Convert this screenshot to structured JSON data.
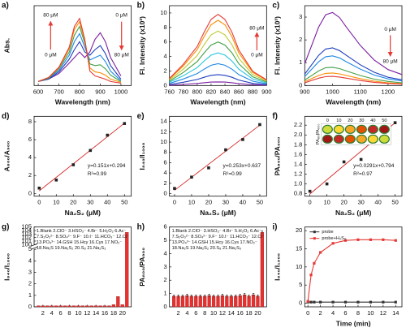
{
  "chart_data": [
    {
      "type": "line",
      "label": "a)",
      "xlabel": "Wavelength (nm)",
      "ylabel": "Abs.",
      "x": [
        600,
        650,
        700,
        750,
        775,
        800,
        825,
        850,
        875,
        900,
        925,
        950,
        1000
      ],
      "series": [
        {
          "color": "#7b1fa2",
          "values": [
            0.05,
            0.08,
            0.15,
            0.28,
            0.35,
            0.42,
            0.35,
            0.42,
            0.58,
            0.66,
            0.55,
            0.35,
            0.12
          ]
        },
        {
          "color": "#1f3fbf",
          "values": [
            0.05,
            0.08,
            0.17,
            0.33,
            0.45,
            0.55,
            0.42,
            0.38,
            0.45,
            0.5,
            0.4,
            0.25,
            0.08
          ]
        },
        {
          "color": "#1e88e5",
          "values": [
            0.05,
            0.09,
            0.19,
            0.38,
            0.55,
            0.65,
            0.48,
            0.32,
            0.35,
            0.38,
            0.3,
            0.18,
            0.06
          ]
        },
        {
          "color": "#43a047",
          "values": [
            0.05,
            0.09,
            0.21,
            0.42,
            0.63,
            0.74,
            0.53,
            0.27,
            0.25,
            0.26,
            0.21,
            0.13,
            0.05
          ]
        },
        {
          "color": "#fb8c00",
          "values": [
            0.05,
            0.1,
            0.22,
            0.46,
            0.7,
            0.8,
            0.56,
            0.22,
            0.17,
            0.16,
            0.13,
            0.08,
            0.04
          ]
        },
        {
          "color": "#e53935",
          "values": [
            0.05,
            0.1,
            0.23,
            0.48,
            0.74,
            0.84,
            0.58,
            0.18,
            0.12,
            0.1,
            0.08,
            0.05,
            0.03
          ]
        }
      ],
      "xlim": [
        580,
        1050
      ],
      "ylim": [
        0,
        1
      ],
      "xticks": [
        600,
        700,
        800,
        900,
        1000
      ],
      "annotations": [
        "80 μM",
        "0 μM",
        "0 μM",
        "80 μM"
      ]
    },
    {
      "type": "line",
      "label": "b)",
      "xlabel": "Wavelength (nm)",
      "ylabel": "Fl. Intensity (x10³)",
      "x": [
        760,
        780,
        800,
        810,
        820,
        830,
        840,
        850,
        860,
        880,
        900
      ],
      "series": [
        {
          "color": "#7b1fa2",
          "values": [
            0.05,
            0.15,
            0.28,
            0.38,
            0.47,
            0.5,
            0.47,
            0.38,
            0.25,
            0.1,
            0.04
          ]
        },
        {
          "color": "#1f3fbf",
          "values": [
            0.15,
            0.45,
            0.83,
            1.13,
            1.4,
            1.5,
            1.4,
            1.13,
            0.75,
            0.3,
            0.12
          ]
        },
        {
          "color": "#1e88e5",
          "values": [
            0.3,
            0.9,
            1.65,
            2.25,
            2.79,
            3,
            2.79,
            2.25,
            1.5,
            0.6,
            0.24
          ]
        },
        {
          "color": "#26c6da",
          "values": [
            0.45,
            1.35,
            2.48,
            3.38,
            4.19,
            4.5,
            4.19,
            3.38,
            2.25,
            0.9,
            0.36
          ]
        },
        {
          "color": "#43a047",
          "values": [
            0.6,
            1.8,
            3.3,
            4.5,
            5.58,
            6,
            5.58,
            4.5,
            3,
            1.2,
            0.48
          ]
        },
        {
          "color": "#c0ca33",
          "values": [
            0.75,
            2.25,
            4.13,
            5.63,
            6.98,
            7.5,
            6.98,
            5.63,
            3.75,
            1.5,
            0.6
          ]
        },
        {
          "color": "#fb8c00",
          "values": [
            0.9,
            2.7,
            4.95,
            6.75,
            8.37,
            9,
            8.37,
            6.75,
            4.5,
            1.8,
            0.72
          ]
        },
        {
          "color": "#e53935",
          "values": [
            0.98,
            2.94,
            5.39,
            7.35,
            9.11,
            9.8,
            9.11,
            7.35,
            4.9,
            1.96,
            0.78
          ]
        }
      ],
      "xlim": [
        760,
        900
      ],
      "ylim": [
        0,
        11
      ],
      "xticks": [
        760,
        780,
        800,
        820,
        840,
        860,
        880,
        900
      ],
      "yticks": [
        0,
        2,
        4,
        6,
        8,
        10
      ],
      "annotations": [
        "80 μM",
        "0 μM"
      ]
    },
    {
      "type": "line",
      "label": "c)",
      "xlabel": "Wavelength (nm)",
      "ylabel": "Fl. Intensity (x10³)",
      "x": [
        900,
        950,
        975,
        1000,
        1025,
        1050,
        1100,
        1150,
        1200,
        1250
      ],
      "series": [
        {
          "color": "#7b1fa2",
          "values": [
            0.96,
            2.56,
            3.1,
            3.2,
            2.98,
            2.56,
            1.76,
            1.12,
            0.7,
            0.48
          ]
        },
        {
          "color": "#1f3fbf",
          "values": [
            0.5,
            1.32,
            1.6,
            1.65,
            1.53,
            1.32,
            0.91,
            0.58,
            0.36,
            0.25
          ]
        },
        {
          "color": "#1e88e5",
          "values": [
            0.39,
            1.04,
            1.26,
            1.3,
            1.21,
            1.04,
            0.72,
            0.46,
            0.29,
            0.2
          ]
        },
        {
          "color": "#43a047",
          "values": [
            0.24,
            0.64,
            0.78,
            0.8,
            0.74,
            0.64,
            0.44,
            0.28,
            0.18,
            0.12
          ]
        },
        {
          "color": "#fb8c00",
          "values": [
            0.17,
            0.44,
            0.53,
            0.55,
            0.51,
            0.44,
            0.3,
            0.19,
            0.12,
            0.08
          ]
        },
        {
          "color": "#e53935",
          "values": [
            0.12,
            0.32,
            0.39,
            0.4,
            0.37,
            0.32,
            0.22,
            0.14,
            0.09,
            0.06
          ]
        }
      ],
      "xlim": [
        900,
        1250
      ],
      "ylim": [
        0,
        3.5
      ],
      "xticks": [
        900,
        1000,
        1100,
        1200
      ],
      "yticks": [
        0,
        1,
        2,
        3
      ],
      "annotations": [
        "0 μM",
        "80 μM"
      ]
    },
    {
      "type": "scatter",
      "label": "d)",
      "xlabel": "Na₂S₂ (μM)",
      "ylabel": "A₈₀₀/A₉₀₀",
      "x": [
        0,
        10,
        20,
        30,
        40,
        50
      ],
      "values": [
        0.6,
        1.5,
        3.2,
        4.8,
        6.5,
        7.8
      ],
      "color": "#222222",
      "fit": {
        "x": [
          0,
          50
        ],
        "values": [
          0.294,
          7.844
        ],
        "color": "#d62728"
      },
      "xlim": [
        -3,
        54
      ],
      "ylim": [
        -0.3,
        8.6
      ],
      "xticks": [
        0,
        10,
        20,
        30,
        40,
        50
      ],
      "yticks": [
        0,
        2,
        4,
        6,
        8
      ],
      "annotations": [
        "y=0.151x+0.294",
        "R²=0.99"
      ]
    },
    {
      "type": "scatter",
      "label": "e)",
      "xlabel": "Na₂S₂ (μM)",
      "ylabel": "I₈₄₀/I₁₀₀₀",
      "x": [
        0,
        10,
        20,
        30,
        40,
        50
      ],
      "values": [
        1.0,
        3.2,
        5.0,
        8.5,
        10.5,
        13.4
      ],
      "color": "#222222",
      "fit": {
        "x": [
          0,
          50
        ],
        "values": [
          0.637,
          13.287
        ],
        "color": "#d62728"
      },
      "xlim": [
        -3,
        54
      ],
      "ylim": [
        -0.5,
        15
      ],
      "xticks": [
        0,
        10,
        20,
        30,
        40,
        50
      ],
      "yticks": [
        0,
        2,
        4,
        6,
        8,
        10,
        12,
        14
      ],
      "annotations": [
        "y=0.253x+0.637",
        "R²=0.99"
      ]
    },
    {
      "type": "scatter",
      "label": "f)",
      "xlabel": "Na₂S₂ (μM)",
      "ylabel": "PA₈₀₀/PA₉₀₀",
      "x": [
        0,
        10,
        20,
        30,
        40,
        50
      ],
      "values": [
        0.85,
        1.0,
        1.45,
        1.5,
        2.0,
        2.25
      ],
      "color": "#222222",
      "fit": {
        "x": [
          0,
          50
        ],
        "values": [
          0.794,
          2.249
        ],
        "color": "#d62728"
      },
      "xlim": [
        -3,
        54
      ],
      "ylim": [
        0.75,
        2.38
      ],
      "xticks": [
        0,
        10,
        20,
        30,
        40,
        50
      ],
      "yticks": [
        0.8,
        {
          "value": 1,
          "label": "1.0"
        },
        1.2,
        1.4,
        1.6,
        1.8,
        {
          "value": 2,
          "label": "2.0"
        },
        2.2
      ],
      "annotations": [
        "y=0.0291x+0.794",
        "R²=0.97"
      ],
      "inset": {
        "concentrations": [
          0,
          10,
          20,
          30,
          40,
          50
        ],
        "rows": [
          "PA₉₀₀",
          "PA₈₀₀"
        ]
      }
    },
    {
      "type": "bar",
      "label": "g)",
      "xlabel": "",
      "ylabel": "I₈₄₀/I₁₀₀₀",
      "x": [
        1,
        2,
        3,
        4,
        5,
        6,
        7,
        8,
        9,
        10,
        11,
        12,
        13,
        14,
        15,
        16,
        17,
        18,
        19,
        20,
        21
      ],
      "values": [
        0.1,
        0.1,
        0.1,
        0.1,
        0.1,
        0.1,
        0.1,
        0.1,
        0.1,
        0.1,
        0.1,
        0.1,
        0.1,
        0.1,
        0.1,
        0.1,
        0.1,
        0.2,
        0.9,
        0.2,
        103.5
      ],
      "color": "#e8312f",
      "xlim": [
        0,
        22
      ],
      "ylim": [
        0,
        105
      ],
      "ybreak": [
        5,
        100
      ],
      "xticks": [
        2,
        4,
        6,
        8,
        10,
        12,
        14,
        16,
        18,
        20
      ],
      "yticks": [
        0,
        1,
        2,
        3,
        4,
        5,
        100,
        101,
        102,
        103,
        104,
        105
      ],
      "legend_text": [
        "1.Blank 2.ClO⁻ 3.HSO₃⁻ 4.Br⁻ 5.H₂O₂ 6.Ac⁻",
        "7.S₂O₃²⁻ 8.SO₄²⁻ 9.F⁻ 10.I⁻ 11.HCO₃⁻ 12.Cl⁻",
        "13.PO₄³⁻ 14.GSH 15.Hcy 16.Cys 17.NO₂⁻",
        "18.Na₂S 19.Na₂S₂ 20.S₈ 21.Na₂S₃"
      ]
    },
    {
      "type": "bar",
      "label": "h)",
      "xlabel": "",
      "ylabel": "PA₈₀₀/PA₉₀₀",
      "x": [
        1,
        2,
        3,
        4,
        5,
        6,
        7,
        8,
        9,
        10,
        11,
        12,
        13,
        14,
        15,
        16,
        17,
        18,
        19,
        20,
        21
      ],
      "values": [
        0.8,
        0.8,
        0.8,
        0.85,
        0.8,
        0.8,
        0.8,
        0.8,
        0.85,
        0.8,
        0.8,
        0.85,
        0.8,
        0.8,
        0.8,
        0.85,
        0.9,
        0.8,
        0.9,
        0.8,
        5.6
      ],
      "errors": [
        0.1,
        0.1,
        0.1,
        0.1,
        0.1,
        0.1,
        0.1,
        0.1,
        0.1,
        0.1,
        0.1,
        0.1,
        0.1,
        0.1,
        0.1,
        0.1,
        0.1,
        0.1,
        0.1,
        0.1,
        0.1
      ],
      "color": "#e8312f",
      "xlim": [
        0,
        22
      ],
      "ylim": [
        0,
        6
      ],
      "xticks": [
        2,
        4,
        6,
        8,
        10,
        12,
        14,
        16,
        18,
        20
      ],
      "yticks": [
        0,
        1,
        2,
        3,
        4,
        5,
        6
      ],
      "legend_text": [
        "1.Blank 2.ClO⁻ 3.HSO₃⁻ 4.Br⁻ 5.H₂O₂ 6.Ac⁻",
        "7.S₂O₃²⁻ 8.SO₄²⁻ 9.F⁻ 10.I⁻ 11.HCO₃⁻ 12.Cl⁻",
        "13.PO₄³⁻ 14.GSH 15.Hcy 16.Cys 17.NO₂⁻",
        "18.Na₂S 19.Na₂S₂ 20.S₈ 21.Na₂S₃"
      ]
    },
    {
      "type": "line",
      "label": "i)",
      "xlabel": "Time (min)",
      "ylabel": "I₈₄₀/I₁₀₀₀",
      "markers": true,
      "x": [
        0,
        0.5,
        1,
        2,
        4,
        6,
        8,
        10,
        12,
        14
      ],
      "series": [
        {
          "name": "probe",
          "color": "#333333",
          "values": [
            0.3,
            0.3,
            0.3,
            0.3,
            0.3,
            0.3,
            0.3,
            0.3,
            0.3,
            0.3
          ]
        },
        {
          "name": "probe+H₂S₂",
          "color": "#e53935",
          "values": [
            0.5,
            7.8,
            11,
            14,
            16.5,
            17.3,
            17.5,
            17.5,
            17.5,
            17.3
          ]
        }
      ],
      "xlim": [
        -0.5,
        15
      ],
      "ylim": [
        -1,
        21
      ],
      "xticks": [
        0,
        2,
        4,
        6,
        8,
        10,
        12,
        14
      ],
      "yticks": [
        0,
        5,
        10,
        15,
        20
      ],
      "legend": "top-left"
    }
  ]
}
